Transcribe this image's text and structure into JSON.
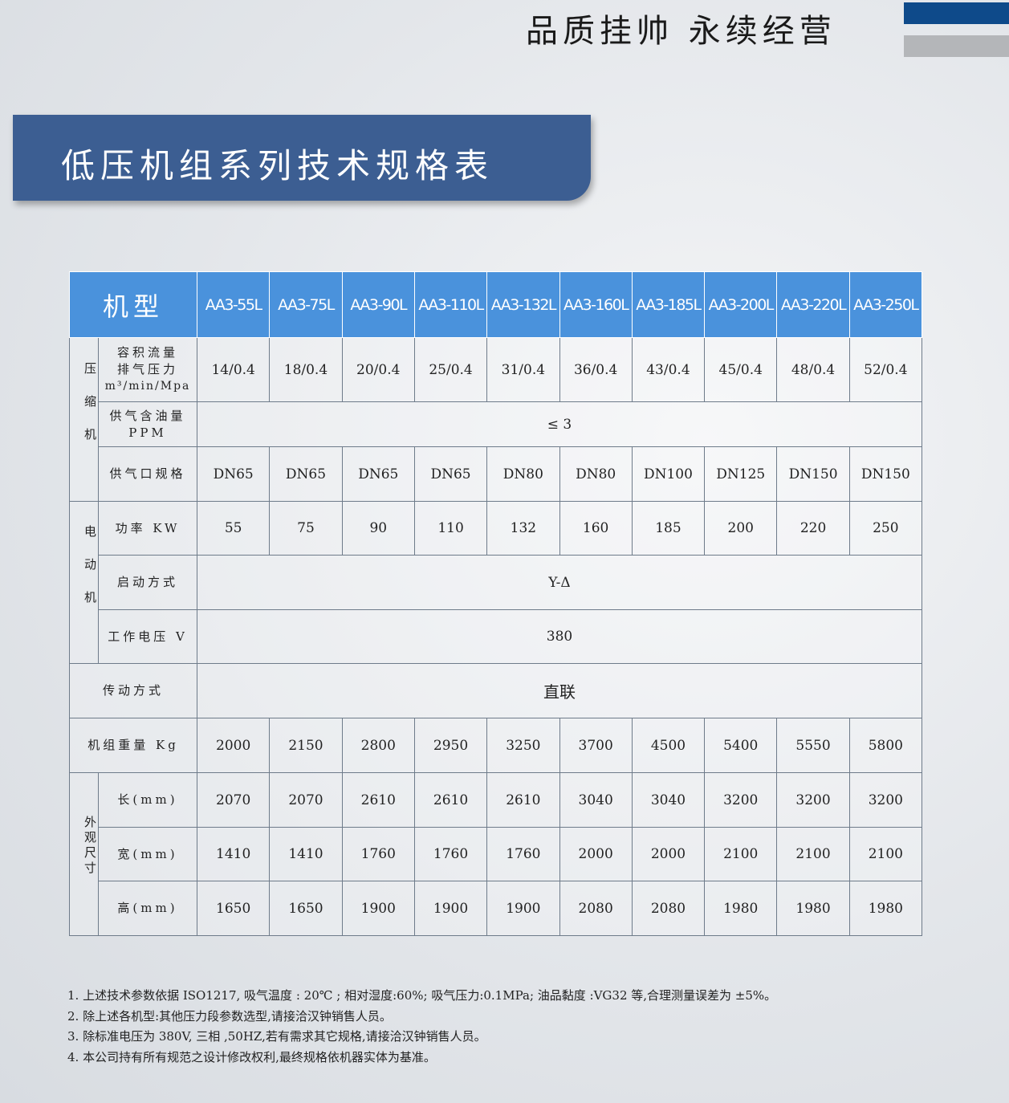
{
  "slogan": "品质挂帅 永续经营",
  "title": "低压机组系列技术规格表",
  "table": {
    "model_label": "机型",
    "models": [
      "AA3-55L",
      "AA3-75L",
      "AA3-90L",
      "AA3-110L",
      "AA3-132L",
      "AA3-160L",
      "AA3-185L",
      "AA3-200L",
      "AA3-220L",
      "AA3-250L"
    ],
    "groups": {
      "compressor": "压缩机",
      "motor": "电动机",
      "dimensions": "外观尺寸"
    },
    "rows": {
      "flow": {
        "label1": "容积流量",
        "label2": "排气压力",
        "label3": "m³/min/Mpa",
        "values": [
          "14/0.4",
          "18/0.4",
          "20/0.4",
          "25/0.4",
          "31/0.4",
          "36/0.4",
          "43/0.4",
          "45/0.4",
          "48/0.4",
          "52/0.4"
        ]
      },
      "oil": {
        "label1": "供气含油量",
        "label2": "PPM",
        "value": "≤ 3"
      },
      "outlet": {
        "label": "供气口规格",
        "values": [
          "DN65",
          "DN65",
          "DN65",
          "DN65",
          "DN80",
          "DN80",
          "DN100",
          "DN125",
          "DN150",
          "DN150"
        ]
      },
      "power": {
        "label": "功率 KW",
        "values": [
          "55",
          "75",
          "90",
          "110",
          "132",
          "160",
          "185",
          "200",
          "220",
          "250"
        ]
      },
      "start": {
        "label": "启动方式",
        "value": "Y-Δ"
      },
      "voltage": {
        "label": "工作电压 V",
        "value": "380"
      },
      "drive": {
        "label": "传动方式",
        "value": "直联"
      },
      "weight": {
        "label": "机组重量 Kg",
        "values": [
          "2000",
          "2150",
          "2800",
          "2950",
          "3250",
          "3700",
          "4500",
          "5400",
          "5550",
          "5800"
        ]
      },
      "length": {
        "label": "长(mm)",
        "values": [
          "2070",
          "2070",
          "2610",
          "2610",
          "2610",
          "3040",
          "3040",
          "3200",
          "3200",
          "3200"
        ]
      },
      "width": {
        "label": "宽(mm)",
        "values": [
          "1410",
          "1410",
          "1760",
          "1760",
          "1760",
          "2000",
          "2000",
          "2100",
          "2100",
          "2100"
        ]
      },
      "height": {
        "label": "高(mm)",
        "values": [
          "1650",
          "1650",
          "1900",
          "1900",
          "1900",
          "2080",
          "2080",
          "1980",
          "1980",
          "1980"
        ]
      }
    }
  },
  "notes": [
    "1. 上述技术参数依据 ISO1217, 吸气温度 : 20℃ ; 相对湿度:60%; 吸气压力:0.1MPa; 油品黏度 :VG32 等,合理测量误差为 ±5%。",
    "2. 除上述各机型:其他压力段参数选型,请接洽汉钟销售人员。",
    "3. 除标准电压为 380V, 三相 ,50HZ,若有需求其它规格,请接洽汉钟销售人员。",
    "4. 本公司持有所有规范之设计修改权利,最终规格依机器实体为基准。"
  ]
}
